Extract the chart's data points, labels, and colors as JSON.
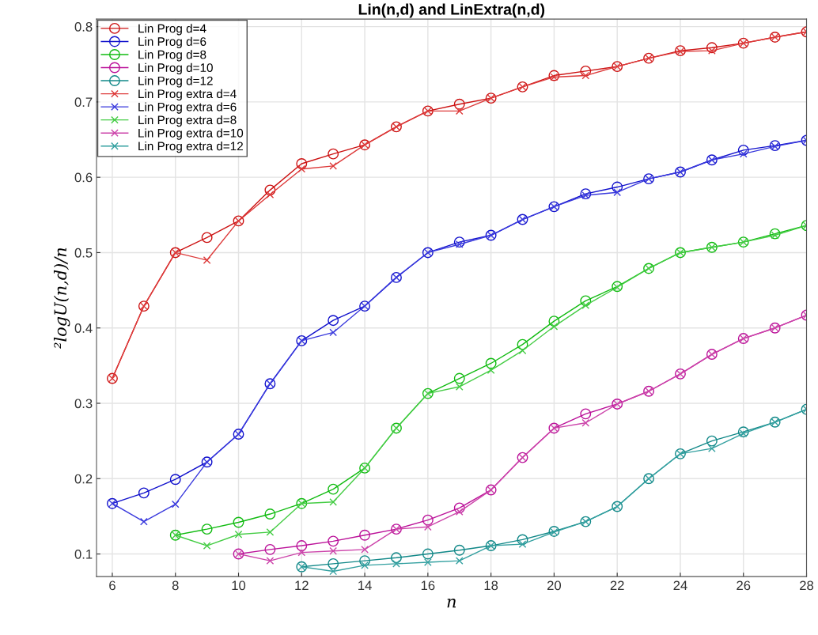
{
  "chart_data": {
    "type": "line",
    "title": "Lin(n,d) and LinExtra(n,d)",
    "xlabel": "n",
    "ylabel": "²logU(n,d)/n",
    "xlim": [
      5.5,
      28
    ],
    "ylim": [
      0.07,
      0.81
    ],
    "xticks": [
      6,
      8,
      10,
      12,
      14,
      16,
      18,
      20,
      22,
      24,
      26,
      28
    ],
    "yticks": [
      0.1,
      0.2,
      0.3,
      0.4,
      0.5,
      0.6,
      0.7,
      0.8
    ],
    "grid": true,
    "legend": "top left",
    "line_style": "solid",
    "series": [
      {
        "name": "Lin Prog d=4",
        "color": "#cc1111",
        "marker": "circle",
        "x": [
          6,
          7,
          8,
          9,
          10,
          11,
          12,
          13,
          14,
          15,
          16,
          17,
          18,
          19,
          20,
          21,
          22,
          23,
          24,
          25,
          26,
          27,
          28
        ],
        "values": [
          0.333,
          0.429,
          0.5,
          0.52,
          0.542,
          0.583,
          0.618,
          0.631,
          0.643,
          0.667,
          0.688,
          0.697,
          0.705,
          0.72,
          0.735,
          0.741,
          0.747,
          0.758,
          0.768,
          0.772,
          0.778,
          0.786,
          0.793
        ]
      },
      {
        "name": "Lin Prog d=6",
        "color": "#1111cc",
        "marker": "circle",
        "x": [
          6,
          7,
          8,
          9,
          10,
          11,
          12,
          13,
          14,
          15,
          16,
          17,
          18,
          19,
          20,
          21,
          22,
          23,
          24,
          25,
          26,
          27,
          28
        ],
        "values": [
          0.167,
          0.181,
          0.199,
          0.222,
          0.259,
          0.326,
          0.383,
          0.41,
          0.429,
          0.467,
          0.5,
          0.514,
          0.523,
          0.544,
          0.561,
          0.578,
          0.587,
          0.598,
          0.607,
          0.623,
          0.636,
          0.642,
          0.649
        ]
      },
      {
        "name": "Lin Prog d=8",
        "color": "#11bb11",
        "marker": "circle",
        "x": [
          8,
          9,
          10,
          11,
          12,
          13,
          14,
          15,
          16,
          17,
          18,
          19,
          20,
          21,
          22,
          23,
          24,
          25,
          26,
          27,
          28
        ],
        "values": [
          0.125,
          0.133,
          0.142,
          0.153,
          0.167,
          0.186,
          0.214,
          0.267,
          0.313,
          0.333,
          0.353,
          0.378,
          0.409,
          0.436,
          0.455,
          0.479,
          0.5,
          0.507,
          0.514,
          0.525,
          0.536
        ]
      },
      {
        "name": "Lin Prog d=10",
        "color": "#bb1199",
        "marker": "circle",
        "x": [
          10,
          11,
          12,
          13,
          14,
          15,
          16,
          17,
          18,
          19,
          20,
          21,
          22,
          23,
          24,
          25,
          26,
          27,
          28
        ],
        "values": [
          0.1,
          0.106,
          0.111,
          0.117,
          0.125,
          0.133,
          0.145,
          0.161,
          0.185,
          0.228,
          0.267,
          0.286,
          0.299,
          0.316,
          0.339,
          0.365,
          0.386,
          0.4,
          0.417
        ]
      },
      {
        "name": "Lin Prog d=12",
        "color": "#118888",
        "marker": "circle",
        "x": [
          12,
          13,
          14,
          15,
          16,
          17,
          18,
          19,
          20,
          21,
          22,
          23,
          24,
          25,
          26,
          27,
          28
        ],
        "values": [
          0.083,
          0.087,
          0.091,
          0.095,
          0.1,
          0.105,
          0.111,
          0.119,
          0.13,
          0.143,
          0.163,
          0.2,
          0.233,
          0.25,
          0.262,
          0.275,
          0.292
        ]
      },
      {
        "name": "Lin Prog extra d=4",
        "color": "#dd3a3a",
        "marker": "cross",
        "x": [
          6,
          7,
          8,
          9,
          10,
          11,
          12,
          13,
          14,
          15,
          16,
          17,
          18,
          19,
          20,
          21,
          22,
          23,
          24,
          25,
          26,
          27,
          28
        ],
        "values": [
          0.333,
          0.429,
          0.5,
          0.49,
          0.542,
          0.577,
          0.611,
          0.615,
          0.643,
          0.667,
          0.688,
          0.688,
          0.705,
          0.72,
          0.733,
          0.735,
          0.747,
          0.758,
          0.767,
          0.768,
          0.778,
          0.786,
          0.793
        ]
      },
      {
        "name": "Lin Prog extra d=6",
        "color": "#3a3add",
        "marker": "cross",
        "x": [
          6,
          7,
          8,
          9,
          10,
          11,
          12,
          13,
          14,
          15,
          16,
          17,
          18,
          19,
          20,
          21,
          22,
          23,
          24,
          25,
          26,
          27,
          28
        ],
        "values": [
          0.167,
          0.143,
          0.166,
          0.222,
          0.259,
          0.326,
          0.383,
          0.394,
          0.429,
          0.467,
          0.5,
          0.511,
          0.523,
          0.544,
          0.561,
          0.576,
          0.58,
          0.598,
          0.607,
          0.623,
          0.631,
          0.641,
          0.649
        ]
      },
      {
        "name": "Lin Prog extra d=8",
        "color": "#44cc44",
        "marker": "cross",
        "x": [
          8,
          9,
          10,
          11,
          12,
          13,
          14,
          15,
          16,
          17,
          18,
          19,
          20,
          21,
          22,
          23,
          24,
          25,
          26,
          27,
          28
        ],
        "values": [
          0.125,
          0.111,
          0.126,
          0.129,
          0.167,
          0.169,
          0.214,
          0.267,
          0.313,
          0.322,
          0.344,
          0.37,
          0.402,
          0.43,
          0.454,
          0.479,
          0.5,
          0.507,
          0.514,
          0.523,
          0.536
        ]
      },
      {
        "name": "Lin Prog extra d=10",
        "color": "#cc44aa",
        "marker": "cross",
        "x": [
          10,
          11,
          12,
          13,
          14,
          15,
          16,
          17,
          18,
          19,
          20,
          21,
          22,
          23,
          24,
          25,
          26,
          27,
          28
        ],
        "values": [
          0.1,
          0.091,
          0.102,
          0.104,
          0.106,
          0.133,
          0.136,
          0.156,
          0.185,
          0.228,
          0.267,
          0.274,
          0.299,
          0.316,
          0.339,
          0.365,
          0.386,
          0.4,
          0.417
        ]
      },
      {
        "name": "Lin Prog extra d=12",
        "color": "#33a0a0",
        "marker": "cross",
        "x": [
          12,
          13,
          14,
          15,
          16,
          17,
          18,
          19,
          20,
          21,
          22,
          23,
          24,
          25,
          26,
          27,
          28
        ],
        "values": [
          0.083,
          0.077,
          0.085,
          0.087,
          0.089,
          0.091,
          0.111,
          0.113,
          0.129,
          0.143,
          0.163,
          0.2,
          0.233,
          0.24,
          0.26,
          0.275,
          0.292
        ]
      }
    ]
  }
}
